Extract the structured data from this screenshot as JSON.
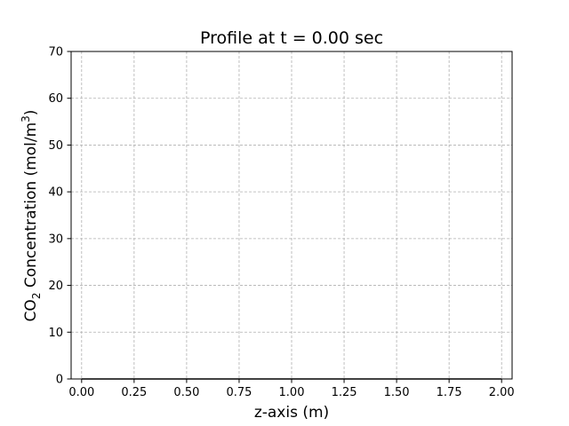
{
  "chart_data": {
    "type": "line",
    "title": "Profile at t = 0.00 sec",
    "xlabel": "z-axis (m)",
    "ylabel": {
      "prefix": "CO",
      "subscript": "2",
      "middle": " Concentration (mol/m",
      "superscript": "3",
      "suffix": ")"
    },
    "xlim": [
      -0.05,
      2.05
    ],
    "ylim": [
      0,
      70
    ],
    "xticks": [
      0.0,
      0.25,
      0.5,
      0.75,
      1.0,
      1.25,
      1.5,
      1.75,
      2.0
    ],
    "xtick_labels": [
      "0.00",
      "0.25",
      "0.50",
      "0.75",
      "1.00",
      "1.25",
      "1.50",
      "1.75",
      "2.00"
    ],
    "yticks": [
      0,
      10,
      20,
      30,
      40,
      50,
      60,
      70
    ],
    "ytick_labels": [
      "0",
      "10",
      "20",
      "30",
      "40",
      "50",
      "60",
      "70"
    ],
    "grid": true,
    "grid_style": "dashed",
    "series": [
      {
        "color": "#000000",
        "x": [
          0.0,
          2.0
        ],
        "y": [
          0,
          0
        ]
      }
    ]
  }
}
